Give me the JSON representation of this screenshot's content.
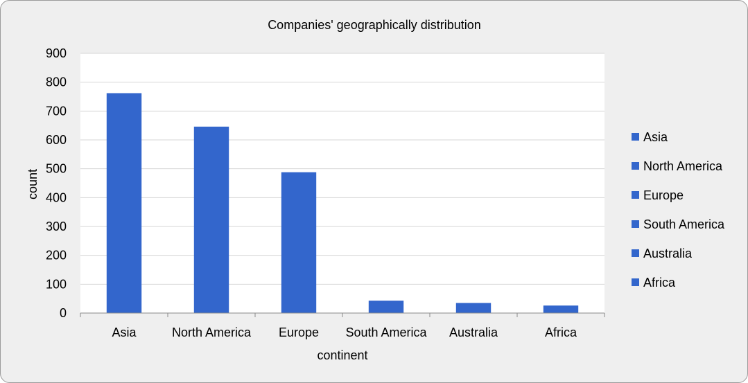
{
  "chart_data": {
    "type": "bar",
    "title": "Companies' geographically distribution",
    "xlabel": "continent",
    "ylabel": "count",
    "categories": [
      "Asia",
      "North America",
      "Europe",
      "South America",
      "Australia",
      "Africa"
    ],
    "values": [
      762,
      646,
      488,
      43,
      35,
      26
    ],
    "ylim": [
      0,
      900
    ],
    "yticks": [
      "0",
      "100",
      "200",
      "300",
      "400",
      "500",
      "600",
      "700",
      "800",
      "900"
    ],
    "grid": true,
    "legend": {
      "position": "right",
      "entries": [
        "Asia",
        "North America",
        "Europe",
        "South America",
        "Australia",
        "Africa"
      ]
    },
    "colors": {
      "bar": "#3366cc",
      "grid": "#d4d4d4",
      "plot_background": "#ffffff",
      "chart_background": "#efefef"
    }
  }
}
